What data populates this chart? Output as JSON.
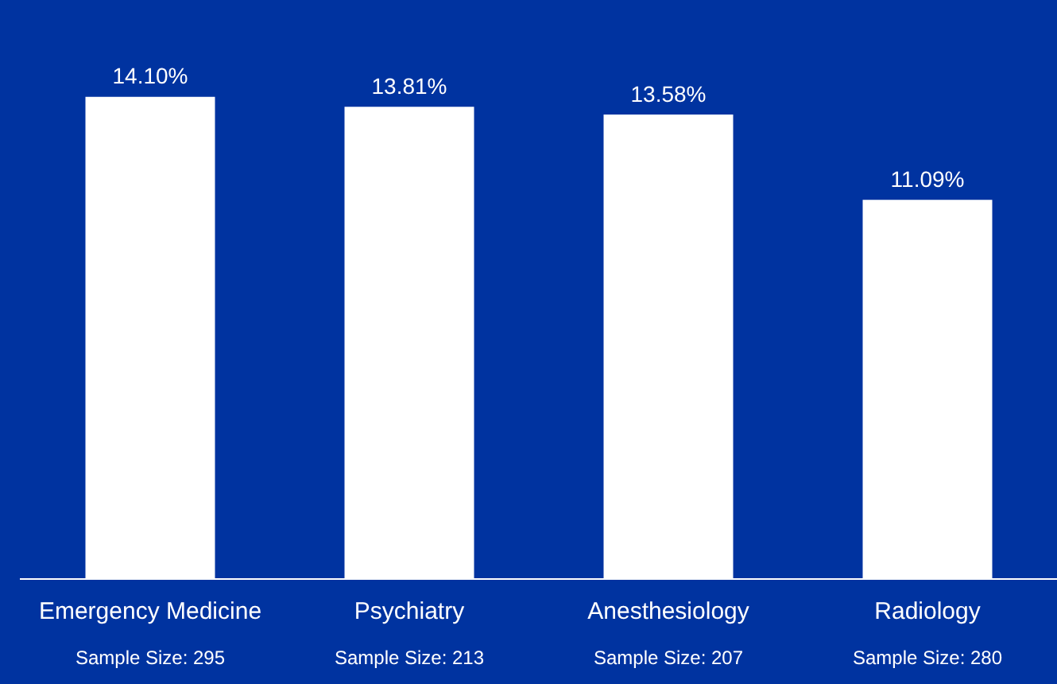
{
  "chart_data": {
    "type": "bar",
    "categories": [
      "Emergency Medicine",
      "Psychiatry",
      "Anesthesiology",
      "Radiology"
    ],
    "values": [
      14.1,
      13.81,
      13.58,
      11.09
    ],
    "color": "#ffffff",
    "value_labels": [
      "14.10%",
      "13.81%",
      "13.58%",
      "11.09%"
    ],
    "tick_labels": "x",
    "grid": false,
    "legend": false,
    "annotations": [
      "Sample Size: 295",
      "Sample Size: 213",
      "Sample Size: 207",
      "Sample Size: 280"
    ]
  }
}
